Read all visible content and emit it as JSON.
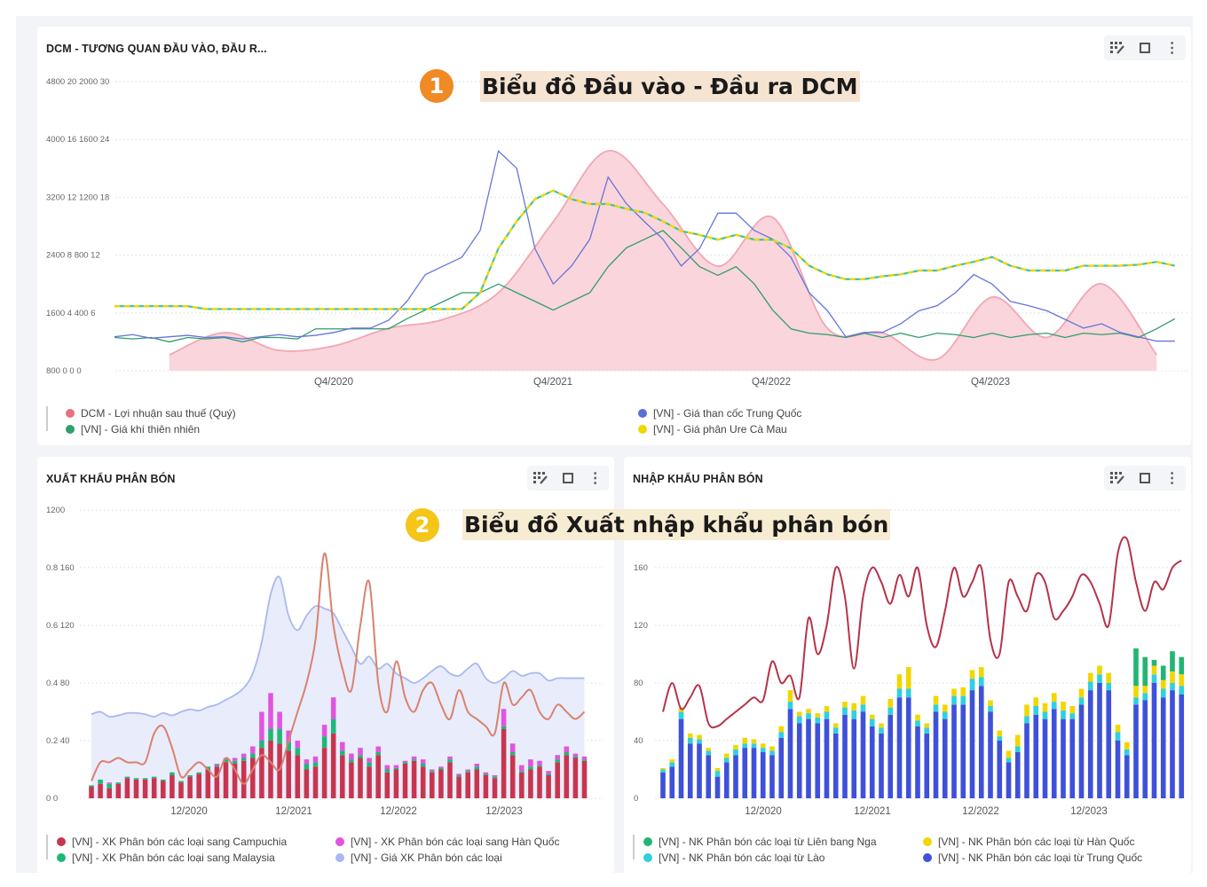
{
  "cards": {
    "top": {
      "title": "DCM - TƯƠNG QUAN ĐẦU VÀO, ĐẦU R..."
    },
    "export": {
      "title": "XUẤT KHẨU PHÂN BÓN"
    },
    "import": {
      "title": "NHẬP KHẨU PHÂN BÓN"
    }
  },
  "toolbar_icons": [
    "grid-edit-icon",
    "fullscreen-icon",
    "more-vertical-icon"
  ],
  "annotations": [
    {
      "number": "1",
      "text": "Biểu đồ Đầu vào - Đầu ra DCM",
      "color": "#f08a24",
      "bg": "#f6e4d3"
    },
    {
      "number": "2",
      "text": "Biểu đồ Xuất nhập khẩu phân bón",
      "color": "#f5c518",
      "bg": "#f6ecd2"
    }
  ],
  "chart_data": [
    {
      "id": "dcm",
      "type": "line",
      "title": "DCM - TƯƠNG QUAN ĐẦU VÀO, ĐẦU R...",
      "ytick_rows": [
        "4800 20 2000 30",
        "4000 16 1600 24",
        "3200 12 1200 18",
        "2400 8 800 12",
        "1600 4 400 6",
        "800  0   0  0"
      ],
      "xtick_labels": [
        "Q4/2020",
        "Q4/2021",
        "Q4/2022",
        "Q4/2023"
      ],
      "x_unit": "month index from 10/2019",
      "grid": true,
      "series": [
        {
          "name": "DCM - Lợi nhuận sau thuế (Quý)",
          "color": "#e8707f",
          "kind": "area",
          "ylim": [
            0,
            2000
          ],
          "x": [
            3,
            6,
            9,
            12,
            15,
            18,
            21,
            24,
            27,
            30,
            33,
            36,
            39,
            42,
            45,
            48,
            51,
            54,
            57
          ],
          "values": [
            110,
            264,
            141,
            172,
            294,
            356,
            540,
            1031,
            1521,
            1153,
            724,
            1061,
            294,
            264,
            80,
            509,
            231,
            601,
            110
          ]
        },
        {
          "name": "[VN] - Giá khí thiên nhiên",
          "color": "#2e9e6b",
          "kind": "line",
          "ylim": [
            0,
            20
          ],
          "values": [
            2.3,
            2.2,
            2.3,
            2.0,
            2.3,
            2.2,
            2.3,
            2.0,
            2.3,
            2.3,
            2.2,
            2.9,
            2.9,
            2.9,
            2.9,
            2.9,
            3.6,
            4.2,
            4.8,
            5.4,
            5.4,
            6.0,
            5.4,
            4.8,
            4.2,
            4.8,
            5.4,
            7.2,
            8.5,
            9.1,
            9.7,
            8.5,
            7.2,
            6.6,
            7.2,
            6.0,
            4.2,
            2.9,
            2.6,
            2.5,
            2.3,
            2.6,
            2.3,
            2.6,
            2.3,
            2.6,
            2.5,
            2.3,
            2.6,
            2.3,
            2.5,
            2.6,
            2.3,
            2.6,
            2.5,
            2.6,
            2.3,
            2.9,
            3.6
          ]
        },
        {
          "name": "[VN] - Giá than cốc Trung Quốc",
          "color": "#6575d8",
          "kind": "line",
          "ylim": [
            800,
            4800
          ],
          "values": [
            1270,
            1300,
            1250,
            1270,
            1290,
            1260,
            1270,
            1240,
            1270,
            1300,
            1270,
            1290,
            1330,
            1390,
            1390,
            1500,
            1760,
            2130,
            2250,
            2370,
            2740,
            3840,
            3600,
            2490,
            2000,
            2250,
            2620,
            3480,
            3110,
            2860,
            2620,
            2250,
            2490,
            2980,
            2980,
            2740,
            2620,
            2370,
            1880,
            1630,
            1270,
            1330,
            1330,
            1450,
            1630,
            1700,
            1880,
            2130,
            2000,
            1760,
            1700,
            1630,
            1510,
            1390,
            1450,
            1330,
            1270,
            1210,
            1210
          ]
        },
        {
          "name": "[VN] - Giá phân Ure Cà Mau",
          "color": "#f2d600",
          "kind": "dashed",
          "ylim": [
            0,
            30
          ],
          "values": [
            6.7,
            6.7,
            6.7,
            6.7,
            6.7,
            6.4,
            6.4,
            6.4,
            6.4,
            6.4,
            6.4,
            6.4,
            6.4,
            6.4,
            6.4,
            6.4,
            6.4,
            6.4,
            6.4,
            6.4,
            8.1,
            12.7,
            15.5,
            17.8,
            18.7,
            17.8,
            17.3,
            17.3,
            16.8,
            16.4,
            15.5,
            14.5,
            14.1,
            13.6,
            14.1,
            13.6,
            13.6,
            12.7,
            10.9,
            10.0,
            9.5,
            9.5,
            9.8,
            10.0,
            10.4,
            10.4,
            10.9,
            11.3,
            11.8,
            10.9,
            10.4,
            10.4,
            10.4,
            10.9,
            10.9,
            10.9,
            11.0,
            11.3,
            10.9
          ]
        }
      ],
      "legend_position": "bottom"
    },
    {
      "id": "export",
      "type": "bar",
      "title": "XUẤT KHẨU PHÂN BÓN",
      "ytick_rows": [
        "1200",
        "0.8 160",
        "0.6 120",
        "0.4  80",
        "0.2  40",
        "0    0"
      ],
      "xtick_labels": [
        "12/2020",
        "12/2021",
        "12/2022",
        "12/2023"
      ],
      "x_unit": "month index from 01/2020",
      "grid": true,
      "series": [
        {
          "name": "[VN] - XK Phân bón các loại sang Campuchia",
          "color": "#c8354f",
          "kind": "bar",
          "ylim": [
            0,
            200
          ],
          "values": [
            8,
            10,
            7,
            10,
            14,
            13,
            13,
            14,
            12,
            16,
            11,
            15,
            17,
            20,
            22,
            25,
            24,
            26,
            28,
            35,
            40,
            38,
            33,
            30,
            20,
            22,
            35,
            45,
            30,
            25,
            28,
            22,
            30,
            18,
            20,
            24,
            26,
            22,
            18,
            20,
            25,
            15,
            18,
            20,
            16,
            14,
            48,
            30,
            18,
            20,
            22,
            16,
            25,
            30,
            28,
            26
          ]
        },
        {
          "name": "[VN] - XK Phân bón các loại sang Malaysia",
          "color": "#1fb877",
          "kind": "bar",
          "ylim": [
            0,
            200
          ],
          "values": [
            1,
            3,
            3,
            1,
            1,
            1,
            1,
            1,
            1,
            2,
            1,
            1,
            1,
            2,
            1,
            2,
            2,
            2,
            3,
            5,
            8,
            10,
            6,
            5,
            4,
            3,
            8,
            10,
            3,
            2,
            2,
            3,
            2,
            2,
            1,
            1,
            1,
            2,
            1,
            1,
            2,
            1,
            1,
            2,
            1,
            1,
            2,
            2,
            1,
            2,
            1,
            1,
            2,
            2,
            1,
            1
          ]
        },
        {
          "name": "[VN] - XK Phân bón các loại sang Hàn Quốc",
          "color": "#e055e0",
          "kind": "bar",
          "ylim": [
            0,
            200
          ],
          "values": [
            0,
            0,
            1,
            0,
            0,
            0,
            0,
            0,
            0,
            0,
            0,
            0,
            0,
            0,
            1,
            1,
            2,
            3,
            5,
            20,
            25,
            12,
            8,
            5,
            3,
            4,
            8,
            15,
            6,
            4,
            5,
            3,
            4,
            3,
            2,
            1,
            2,
            3,
            1,
            1,
            2,
            1,
            1,
            2,
            1,
            1,
            12,
            6,
            4,
            5,
            3,
            2,
            3,
            4,
            2,
            2
          ]
        },
        {
          "name": "[VN] - Giá XK Phân bón các loại",
          "color": "#a9b8f0",
          "kind": "area",
          "ylim": [
            0,
            1200
          ],
          "values": [
            350,
            360,
            340,
            345,
            355,
            355,
            350,
            340,
            355,
            345,
            360,
            370,
            365,
            380,
            390,
            410,
            430,
            460,
            520,
            650,
            850,
            920,
            760,
            700,
            760,
            800,
            790,
            770,
            700,
            630,
            560,
            590,
            540,
            560,
            520,
            500,
            480,
            500,
            530,
            550,
            520,
            510,
            540,
            560,
            500,
            480,
            500,
            530,
            510,
            520,
            520,
            490,
            500,
            500,
            500,
            500
          ]
        },
        {
          "name": "",
          "color": "#d9826e",
          "kind": "line",
          "ylim": [
            0,
            200
          ],
          "values": [
            12,
            25,
            25,
            28,
            25,
            25,
            25,
            45,
            50,
            35,
            15,
            20,
            25,
            20,
            15,
            28,
            20,
            10,
            20,
            30,
            25,
            20,
            40,
            60,
            80,
            110,
            170,
            120,
            90,
            75,
            120,
            150,
            80,
            60,
            95,
            70,
            60,
            75,
            80,
            65,
            55,
            75,
            60,
            55,
            50,
            45,
            80,
            65,
            70,
            75,
            60,
            55,
            65,
            60,
            55,
            60
          ]
        }
      ],
      "legend_position": "bottom"
    },
    {
      "id": "import",
      "type": "bar",
      "title": "NHẬP KHẨU PHÂN BÓN",
      "ytick_rows": [
        "",
        "160",
        "120",
        "80",
        "40",
        "0"
      ],
      "xtick_labels": [
        "12/2020",
        "12/2021",
        "12/2022",
        "12/2023"
      ],
      "x_unit": "month index from 01/2020",
      "grid": true,
      "series": [
        {
          "name": "[VN] - NK Phân bón các loại từ Trung Quốc",
          "color": "#3f51d8",
          "kind": "bar",
          "ylim": [
            0,
            200
          ],
          "values": [
            18,
            22,
            55,
            38,
            38,
            30,
            15,
            25,
            30,
            35,
            35,
            32,
            30,
            42,
            62,
            52,
            55,
            52,
            55,
            45,
            58,
            55,
            60,
            50,
            45,
            58,
            70,
            70,
            50,
            45,
            60,
            55,
            65,
            65,
            75,
            78,
            60,
            40,
            25,
            32,
            52,
            58,
            55,
            62,
            55,
            55,
            65,
            75,
            80,
            75,
            40,
            30,
            65,
            68,
            80,
            70,
            75,
            72
          ]
        },
        {
          "name": "[VN] - NK Phân bón các loại từ Lào",
          "color": "#2fd0e0",
          "kind": "bar",
          "ylim": [
            0,
            200
          ],
          "values": [
            2,
            3,
            5,
            4,
            3,
            3,
            4,
            3,
            4,
            3,
            3,
            3,
            3,
            4,
            5,
            5,
            4,
            4,
            5,
            4,
            5,
            6,
            5,
            5,
            4,
            5,
            6,
            6,
            4,
            4,
            5,
            5,
            6,
            6,
            8,
            6,
            4,
            3,
            3,
            4,
            5,
            6,
            5,
            5,
            6,
            4,
            5,
            6,
            6,
            5,
            6,
            4,
            5,
            5,
            6,
            6,
            5,
            6
          ]
        },
        {
          "name": "[VN] - NK Phân bón các loại từ Hàn Quốc",
          "color": "#f2d600",
          "kind": "bar",
          "ylim": [
            0,
            200
          ],
          "values": [
            1,
            2,
            3,
            3,
            3,
            2,
            2,
            3,
            3,
            4,
            3,
            3,
            3,
            4,
            8,
            3,
            3,
            3,
            4,
            3,
            4,
            5,
            6,
            3,
            3,
            6,
            10,
            15,
            4,
            3,
            6,
            5,
            5,
            6,
            6,
            7,
            4,
            4,
            5,
            8,
            8,
            6,
            6,
            6,
            6,
            5,
            6,
            6,
            6,
            7,
            5,
            5,
            8,
            5,
            6,
            6,
            8,
            8
          ]
        },
        {
          "name": "[VN] - NK Phân bón các loại từ Liên bang Nga",
          "color": "#22b573",
          "kind": "bar",
          "ylim": [
            0,
            200
          ],
          "values": [
            0,
            0,
            0,
            0,
            0,
            0,
            0,
            0,
            0,
            0,
            0,
            0,
            0,
            0,
            0,
            0,
            0,
            0,
            0,
            0,
            0,
            0,
            0,
            0,
            0,
            0,
            0,
            0,
            0,
            0,
            0,
            0,
            0,
            0,
            0,
            0,
            0,
            0,
            0,
            0,
            0,
            0,
            0,
            0,
            0,
            0,
            0,
            0,
            0,
            0,
            0,
            0,
            26,
            20,
            4,
            10,
            14,
            12
          ]
        },
        {
          "name": "",
          "color": "#b5334a",
          "kind": "line",
          "ylim": [
            0,
            200
          ],
          "values": [
            60,
            80,
            62,
            70,
            78,
            52,
            50,
            55,
            60,
            65,
            70,
            68,
            95,
            80,
            85,
            70,
            125,
            100,
            120,
            160,
            140,
            90,
            140,
            160,
            150,
            135,
            155,
            140,
            160,
            120,
            105,
            130,
            160,
            140,
            150,
            160,
            110,
            100,
            150,
            140,
            130,
            155,
            150,
            125,
            130,
            140,
            155,
            150,
            135,
            120,
            170,
            180,
            150,
            130,
            150,
            145,
            160,
            165
          ]
        }
      ],
      "legend_position": "bottom"
    }
  ]
}
